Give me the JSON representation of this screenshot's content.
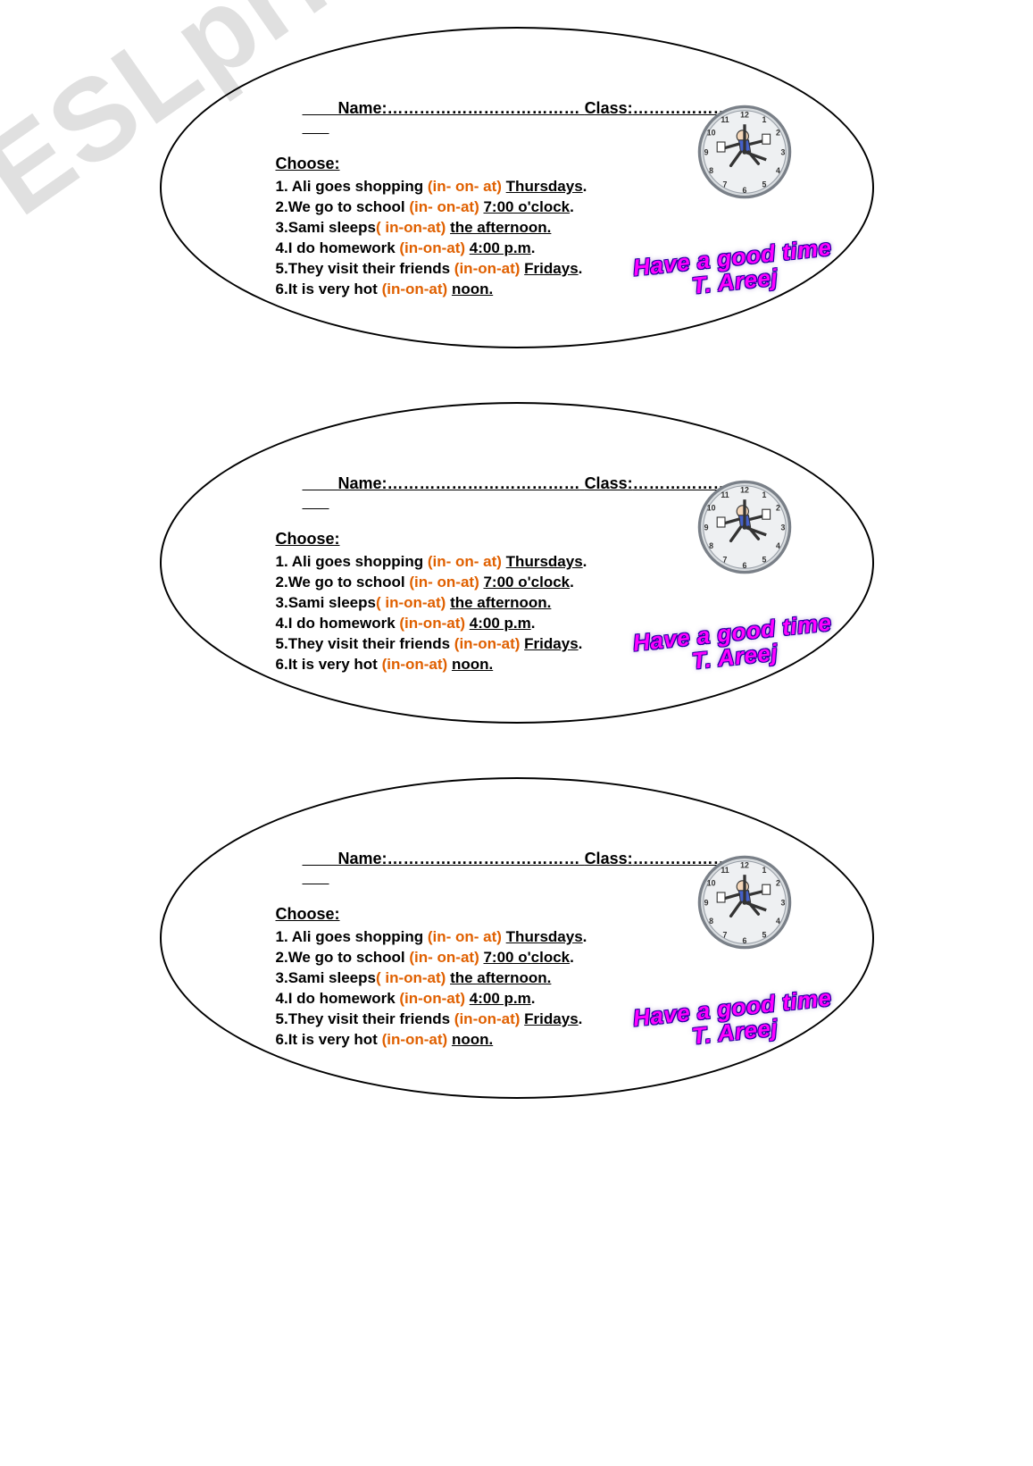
{
  "watermark": "ESLprintables.com",
  "header": {
    "name_label": "Name:",
    "name_dots": "………………………………",
    "class_label": "Class:",
    "class_dots": "………………"
  },
  "choose_label": "Choose:",
  "questions": [
    {
      "n": "1.",
      "pre": " Ali goes shopping ",
      "opt": "(in- on- at)",
      "post_u": "Thursdays",
      "post": "."
    },
    {
      "n": "2.",
      "pre": "We go to school ",
      "opt": "(in- on-at)",
      "post_u": "7:00 o'clock",
      "post": "."
    },
    {
      "n": "3.",
      "pre": "Sami  sleeps",
      "opt": "( in-on-at)",
      "post_u": "the afternoon.",
      "post": ""
    },
    {
      "n": "4.",
      "pre": "I do homework ",
      "opt": "(in-on-at)",
      "post_u": "4:00 p.m",
      "post": ".",
      "gap": "   "
    },
    {
      "n": "5.",
      "pre": "They visit their friends ",
      "opt": "(in-on-at)",
      "post_u": "Fridays",
      "post": "."
    },
    {
      "n": "6.",
      "pre": "It is very hot ",
      "opt": "(in-on-at)",
      "post_u": "noon.",
      "post": ""
    }
  ],
  "signature": {
    "line1": "Have a good time",
    "line2": "T. Areej"
  },
  "colors": {
    "option": "#e06000",
    "sig_fill": "#ff00ff",
    "sig_stroke": "#2000a0",
    "border": "#000000",
    "bg": "#ffffff",
    "watermark": "rgba(0,0,0,0.12)"
  },
  "card_count": 3
}
